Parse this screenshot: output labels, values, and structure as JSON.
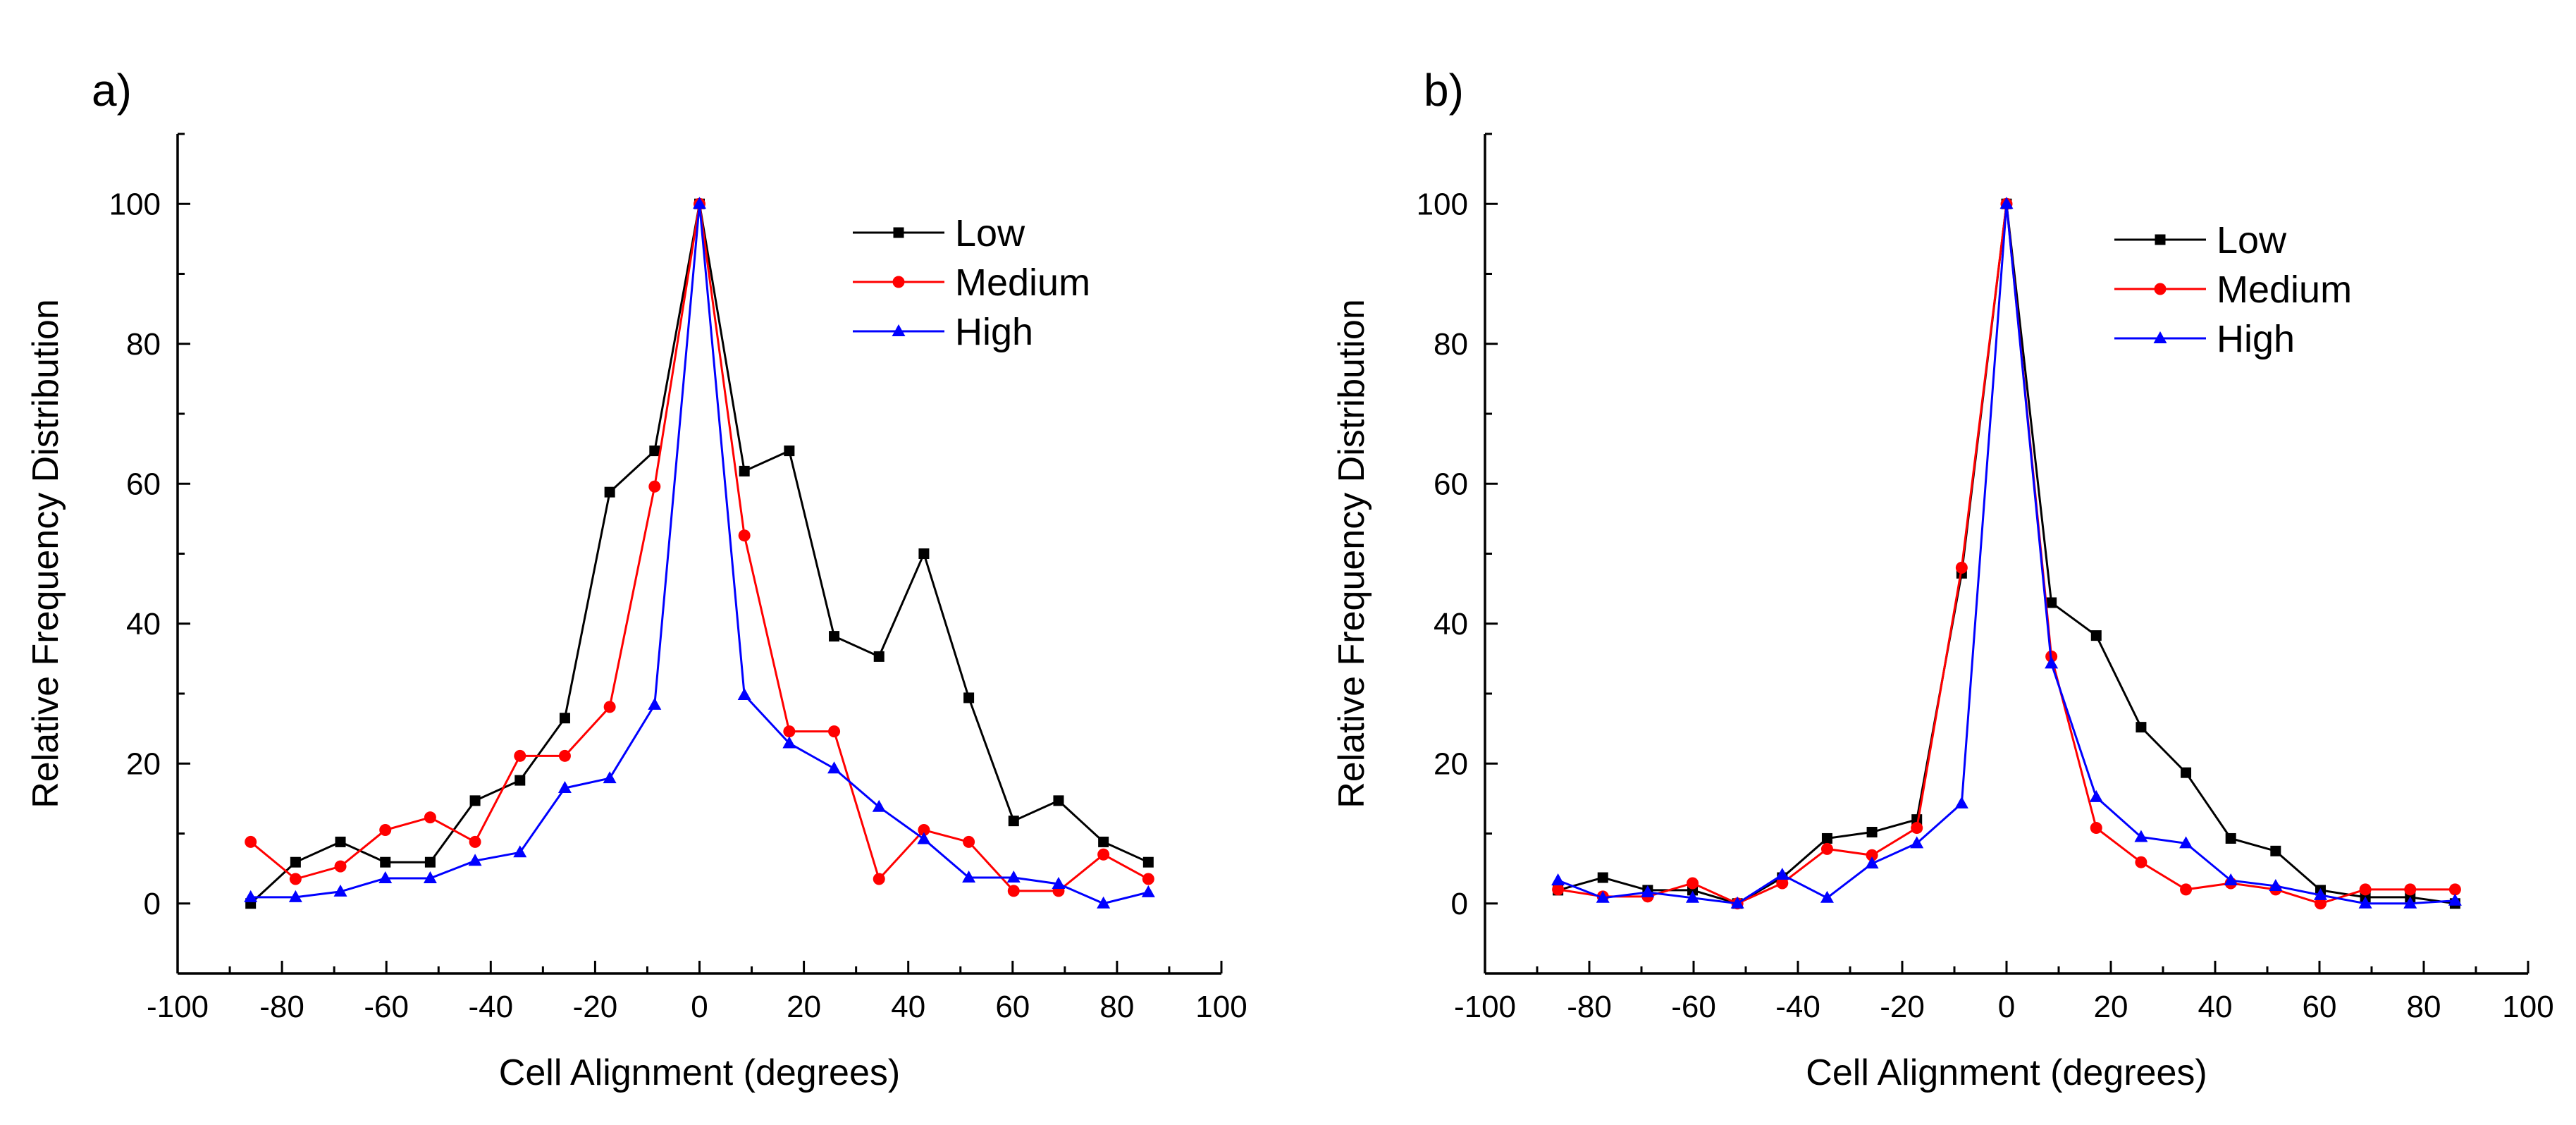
{
  "chart_data": [
    {
      "type": "line",
      "panel_label": "a)",
      "xlabel": "Cell Alignment (degrees)",
      "ylabel": "Relative Frequency Distribution",
      "xlim": [
        -100,
        100
      ],
      "ylim": [
        -10,
        110
      ],
      "xticks": [
        "-100",
        "-80",
        "-60",
        "-40",
        "-20",
        "0",
        "20",
        "40",
        "60",
        "80",
        "100"
      ],
      "yticks": [
        "0",
        "20",
        "40",
        "60",
        "80",
        "100"
      ],
      "legend_position": "top-right",
      "x": [
        -86,
        -77.4,
        -68.8,
        -60.2,
        -51.6,
        -43,
        -34.4,
        -25.8,
        -17.2,
        -8.6,
        0,
        8.6,
        17.2,
        25.8,
        34.4,
        43,
        51.6,
        60.2,
        68.8,
        77.4,
        86
      ],
      "series": [
        {
          "name": "Low",
          "color": "#000000",
          "marker": "square",
          "values": [
            0,
            5.9,
            8.8,
            5.9,
            5.9,
            14.7,
            17.6,
            26.5,
            58.8,
            64.7,
            100,
            61.8,
            64.7,
            38.2,
            35.3,
            50,
            29.4,
            11.8,
            14.7,
            8.8,
            5.9
          ]
        },
        {
          "name": "Medium",
          "color": "#ff0000",
          "marker": "circle",
          "values": [
            8.8,
            3.5,
            5.3,
            10.5,
            12.3,
            8.8,
            21.1,
            21.1,
            28.1,
            59.6,
            100,
            52.6,
            24.6,
            24.6,
            3.5,
            10.5,
            8.8,
            1.8,
            1.8,
            7,
            3.5
          ]
        },
        {
          "name": "High",
          "color": "#0000ff",
          "marker": "triangle",
          "values": [
            0.9,
            0.9,
            1.7,
            3.6,
            3.6,
            6.1,
            7.3,
            16.5,
            17.9,
            28.4,
            100,
            29.8,
            22.9,
            19.3,
            13.8,
            9.2,
            3.7,
            3.7,
            2.8,
            0,
            1.6
          ]
        }
      ]
    },
    {
      "type": "line",
      "panel_label": "b)",
      "xlabel": "Cell Alignment (degrees)",
      "ylabel": "Relative Frequency Distribution",
      "xlim": [
        -100,
        100
      ],
      "ylim": [
        -10,
        110
      ],
      "xticks": [
        "-100",
        "-80",
        "-60",
        "-40",
        "-20",
        "0",
        "20",
        "40",
        "60",
        "80",
        "100"
      ],
      "yticks": [
        "0",
        "20",
        "40",
        "60",
        "80",
        "100"
      ],
      "legend_position": "top-right",
      "x": [
        -86,
        -77.4,
        -68.8,
        -60.2,
        -51.6,
        -43,
        -34.4,
        -25.8,
        -17.2,
        -8.6,
        0,
        8.6,
        17.2,
        25.8,
        34.4,
        43,
        51.6,
        60.2,
        68.8,
        77.4,
        86
      ],
      "series": [
        {
          "name": "Low",
          "color": "#000000",
          "marker": "square",
          "values": [
            1.9,
            3.7,
            1.9,
            1.9,
            0,
            3.7,
            9.3,
            10.2,
            12,
            47.2,
            100,
            43,
            38.3,
            25.2,
            18.7,
            9.3,
            7.5,
            1.9,
            0.9,
            0.9,
            0
          ]
        },
        {
          "name": "Medium",
          "color": "#ff0000",
          "marker": "circle",
          "values": [
            2,
            1,
            1,
            2.9,
            0,
            2.9,
            7.8,
            6.9,
            10.8,
            48,
            100,
            35.3,
            10.8,
            5.9,
            2,
            2.9,
            2,
            0,
            2,
            2,
            2
          ]
        },
        {
          "name": "High",
          "color": "#0000ff",
          "marker": "triangle",
          "values": [
            3.3,
            0.8,
            1.6,
            0.8,
            0,
            4.1,
            0.8,
            5.7,
            8.6,
            14.3,
            100,
            34.3,
            15.2,
            9.5,
            8.6,
            3.3,
            2.5,
            1.2,
            0,
            0,
            0.4
          ]
        }
      ]
    }
  ]
}
